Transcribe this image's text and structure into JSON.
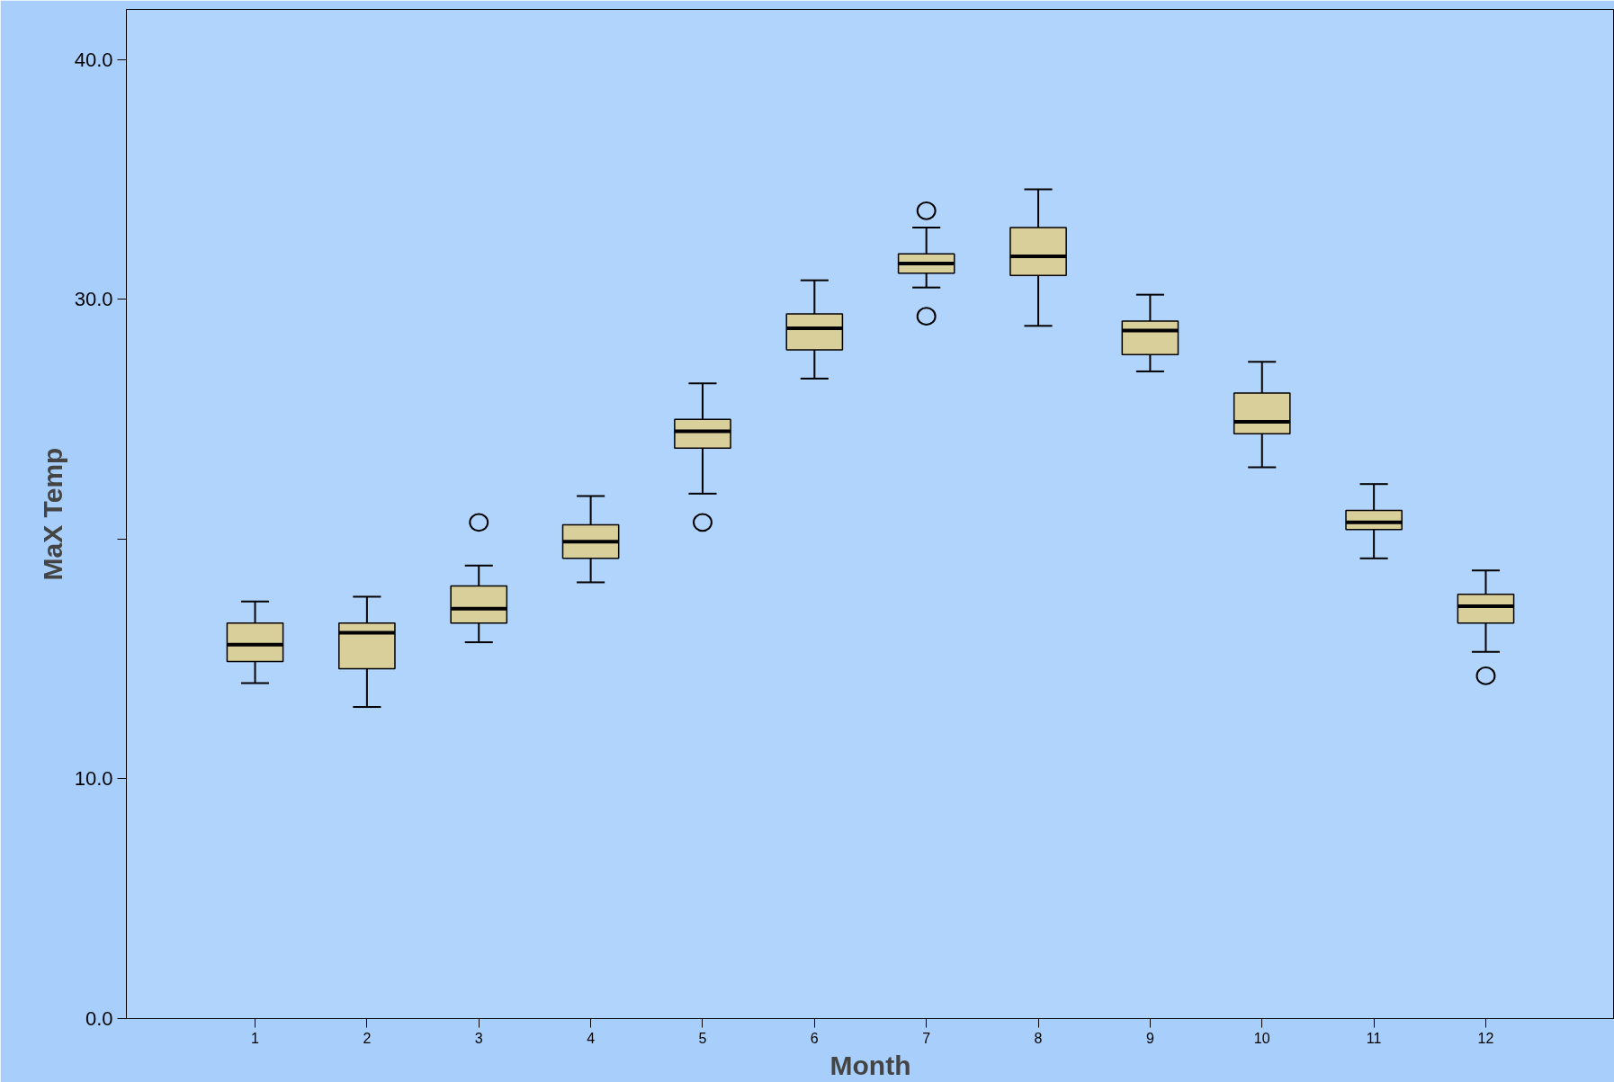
{
  "chart_data": {
    "type": "box",
    "xlabel": "Month",
    "ylabel": "MaX Temp",
    "categories": [
      "1",
      "2",
      "3",
      "4",
      "5",
      "6",
      "7",
      "8",
      "9",
      "10",
      "11",
      "12"
    ],
    "ylim": [
      0,
      42.1
    ],
    "yticks": [
      {
        "value": 0,
        "label": "0.0"
      },
      {
        "value": 10,
        "label": "10.0"
      },
      {
        "value": 20,
        "label": null
      },
      {
        "value": 30,
        "label": "30.0"
      },
      {
        "value": 40,
        "label": "40.0"
      }
    ],
    "grid": false,
    "series": [
      {
        "color": "#d8cf9a",
        "boxes": [
          {
            "low": 14.0,
            "q1": 14.9,
            "median": 15.6,
            "q3": 16.5,
            "high": 17.4
          },
          {
            "low": 13.0,
            "q1": 14.6,
            "median": 16.1,
            "q3": 16.5,
            "high": 17.6
          },
          {
            "low": 15.7,
            "q1": 16.5,
            "median": 17.1,
            "q3": 18.05,
            "high": 18.9,
            "outliers": [
              20.7
            ]
          },
          {
            "low": 18.2,
            "q1": 19.2,
            "median": 19.9,
            "q3": 20.6,
            "high": 21.8
          },
          {
            "low": 21.9,
            "q1": 23.8,
            "median": 24.5,
            "q3": 25.0,
            "high": 26.5,
            "outliers": [
              20.7
            ]
          },
          {
            "low": 26.7,
            "q1": 27.9,
            "median": 28.8,
            "q3": 29.4,
            "high": 30.8
          },
          {
            "low": 30.5,
            "q1": 31.1,
            "median": 31.5,
            "q3": 31.9,
            "high": 33.0,
            "outliers": [
              33.7,
              29.3
            ]
          },
          {
            "low": 28.9,
            "q1": 31.0,
            "median": 31.8,
            "q3": 33.0,
            "high": 34.6
          },
          {
            "low": 27.0,
            "q1": 27.7,
            "median": 28.7,
            "q3": 29.1,
            "high": 30.2
          },
          {
            "low": 23.0,
            "q1": 24.4,
            "median": 24.9,
            "q3": 26.1,
            "high": 27.4
          },
          {
            "low": 19.2,
            "q1": 20.4,
            "median": 20.7,
            "q3": 21.2,
            "high": 22.3
          },
          {
            "low": 15.3,
            "q1": 16.5,
            "median": 17.2,
            "q3": 17.7,
            "high": 18.7,
            "outliers": [
              14.3
            ]
          }
        ]
      }
    ]
  }
}
